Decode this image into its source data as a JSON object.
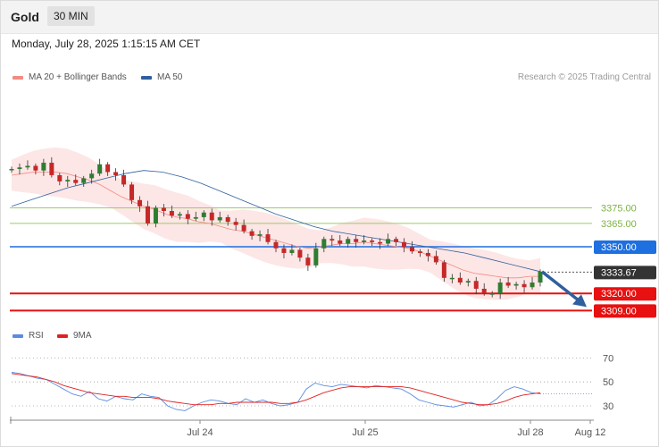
{
  "header": {
    "title": "Gold",
    "timeframe": "30 MIN"
  },
  "datetime": "Monday, July 28, 2025 1:15:15 AM CET",
  "legend": {
    "ma20_bb": "MA 20 + Bollinger Bands",
    "ma50": "MA 50",
    "credit": "Research © 2025 Trading Central",
    "colors": {
      "ma20": "#f28b82",
      "bb_fill": "#fde2e2",
      "ma50": "#2f5f9e"
    }
  },
  "rsi_legend": {
    "rsi": "RSI",
    "ma9": "9MA",
    "colors": {
      "rsi": "#5b8be0",
      "ma9": "#e02020"
    }
  },
  "chart_data": [
    {
      "type": "candlestick",
      "x_ticks": [
        "Jul 24",
        "Jul 25",
        "Jul 28",
        "Aug 12"
      ],
      "levels": [
        {
          "label": "3375.00",
          "value": 3375,
          "color": "#9ccc65",
          "style": "text"
        },
        {
          "label": "3365.00",
          "value": 3365,
          "color": "#9ccc65",
          "style": "text"
        },
        {
          "label": "3350.00",
          "value": 3350,
          "color": "#1e6fe0",
          "style": "box"
        },
        {
          "label": "3333.67",
          "value": 3333.67,
          "color": "#333333",
          "style": "box"
        },
        {
          "label": "3320.00",
          "value": 3320,
          "color": "#e81010",
          "style": "box"
        },
        {
          "label": "3309.00",
          "value": 3309,
          "color": "#e81010",
          "style": "box"
        }
      ],
      "close_series": [
        3400,
        3401,
        3402,
        3399,
        3404,
        3396,
        3392,
        3393,
        3391,
        3394,
        3397,
        3403,
        3398,
        3396,
        3390,
        3380,
        3376,
        3365,
        3375,
        3373,
        3370,
        3371,
        3368,
        3369,
        3372,
        3367,
        3369,
        3366,
        3364,
        3360,
        3357,
        3358,
        3353,
        3349,
        3346,
        3348,
        3343,
        3338,
        3349,
        3355,
        3354,
        3352,
        3355,
        3353,
        3354,
        3353,
        3352,
        3355,
        3353,
        3350,
        3347,
        3346,
        3344,
        3340,
        3330,
        3330,
        3327,
        3328,
        3323,
        3320,
        3320,
        3327,
        3325,
        3326,
        3324,
        3327,
        3334
      ],
      "ma20_series": [
        3396,
        3397,
        3398,
        3398,
        3398,
        3397,
        3395,
        3393,
        3390,
        3386,
        3382,
        3379,
        3376,
        3374,
        3371,
        3369,
        3368,
        3366,
        3365,
        3363,
        3361,
        3360,
        3358,
        3356,
        3354,
        3352,
        3350,
        3349,
        3350,
        3351,
        3352,
        3352,
        3353,
        3352,
        3351,
        3350,
        3349,
        3347,
        3344,
        3341,
        3338,
        3335,
        3333,
        3332,
        3331,
        3330,
        3330,
        3331,
        3331
      ],
      "ma50_series": [
        3376,
        3380,
        3384,
        3388,
        3391,
        3394,
        3397,
        3399,
        3398,
        3395,
        3391,
        3386,
        3381,
        3376,
        3371,
        3367,
        3363,
        3360,
        3358,
        3356,
        3354,
        3352,
        3350,
        3348,
        3346,
        3343,
        3340,
        3337,
        3334
      ],
      "arrow_target": 3309
    },
    {
      "type": "line",
      "title": "RSI",
      "y_ticks": [
        70,
        50,
        30
      ],
      "ylim": [
        20,
        80
      ],
      "rsi": [
        58,
        57,
        55,
        53,
        52,
        48,
        44,
        40,
        38,
        42,
        36,
        34,
        38,
        36,
        35,
        40,
        38,
        37,
        30,
        27,
        26,
        30,
        33,
        35,
        34,
        32,
        31,
        36,
        33,
        35,
        32,
        30,
        31,
        33,
        44,
        49,
        47,
        46,
        48,
        47,
        46,
        45,
        47,
        46,
        45,
        44,
        40,
        35,
        33,
        31,
        30,
        29,
        31,
        33,
        30,
        31,
        36,
        43,
        46,
        44,
        41,
        40
      ],
      "ma9": [
        57,
        56,
        55,
        54,
        52,
        50,
        47,
        45,
        43,
        41,
        40,
        39,
        38,
        38,
        37,
        37,
        37,
        36,
        34,
        33,
        32,
        31,
        31,
        31,
        32,
        32,
        33,
        33,
        33,
        33,
        33,
        32,
        32,
        33,
        35,
        38,
        41,
        43,
        45,
        46,
        46,
        46,
        46,
        46,
        46,
        46,
        45,
        43,
        41,
        39,
        37,
        35,
        33,
        32,
        31,
        31,
        32,
        34,
        37,
        39,
        40,
        41
      ]
    }
  ]
}
